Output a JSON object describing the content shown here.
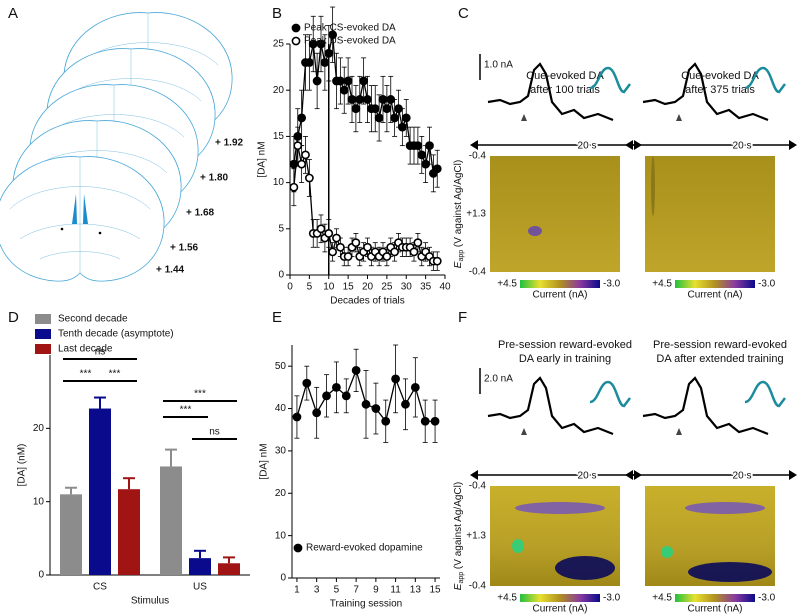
{
  "panel_labels": [
    "A",
    "B",
    "C",
    "D",
    "E",
    "F"
  ],
  "atlas_levels": [
    "+ 1.92",
    "+ 1.80",
    "+ 1.68",
    "+ 1.56",
    "+ 1.44"
  ],
  "chart_data": [
    {
      "type": "line",
      "xlabel": "Decades of trials",
      "ylabel": "[DA] nM",
      "xlim": [
        0,
        40
      ],
      "xticks": [
        0,
        5,
        10,
        15,
        20,
        25,
        30,
        35,
        40
      ],
      "ylim": [
        0,
        25
      ],
      "yticks": [
        0,
        5,
        10,
        15,
        20,
        25
      ],
      "marker_x": 10,
      "legend": "upper left",
      "series": [
        {
          "name": "Peak CS-evoked DA",
          "color": "#000000",
          "marker": "filled",
          "x": [
            1,
            2,
            3,
            4,
            5,
            6,
            7,
            8,
            9,
            10,
            11,
            12,
            13,
            14,
            15,
            16,
            17,
            18,
            19,
            20,
            21,
            22,
            23,
            24,
            25,
            26,
            27,
            28,
            29,
            30,
            31,
            32,
            33,
            34,
            35,
            36,
            37,
            38
          ],
          "values": [
            12,
            15,
            17,
            23,
            23,
            25,
            21,
            25,
            23,
            24,
            26,
            21,
            21,
            20,
            21,
            19,
            18,
            19,
            21,
            19,
            18,
            18,
            17,
            19,
            18,
            19,
            17,
            18,
            16,
            17,
            14,
            14,
            14,
            13,
            12,
            14,
            11,
            11.5
          ],
          "errors": [
            3,
            3,
            3,
            3,
            3,
            3,
            3,
            3,
            3,
            3,
            3,
            3,
            2.5,
            2.5,
            2.5,
            2.5,
            2.5,
            2.5,
            2.5,
            2.5,
            2.5,
            2.5,
            2.5,
            2.5,
            2.5,
            2.5,
            2,
            2,
            2,
            2,
            2,
            2,
            2,
            2,
            2,
            2,
            2,
            2
          ]
        },
        {
          "name": "Peak US-evoked DA",
          "color": "#000000",
          "marker": "open",
          "x": [
            1,
            2,
            3,
            4,
            5,
            6,
            7,
            8,
            9,
            10,
            11,
            12,
            13,
            14,
            15,
            16,
            17,
            18,
            19,
            20,
            21,
            22,
            23,
            24,
            25,
            26,
            27,
            28,
            29,
            30,
            31,
            32,
            33,
            34,
            35,
            36,
            37,
            38
          ],
          "values": [
            9.5,
            14,
            12,
            13,
            10.5,
            4.5,
            4.5,
            5,
            4,
            4.5,
            2.5,
            4,
            3,
            2,
            2,
            3,
            3.5,
            2,
            2.5,
            3,
            2,
            2.5,
            2,
            2.5,
            2,
            3,
            2.5,
            3.5,
            3,
            3,
            3,
            2.5,
            3.5,
            2,
            2.5,
            2,
            1.5,
            1.5
          ],
          "errors": [
            2,
            2,
            2,
            2,
            2,
            1.5,
            1.5,
            1.5,
            1.5,
            1.5,
            1,
            1,
            1,
            1,
            1,
            1,
            1,
            1,
            1,
            1,
            1,
            1,
            1,
            1,
            1,
            1,
            1,
            1,
            1,
            1,
            1,
            1,
            1,
            1,
            1,
            1,
            1,
            1
          ]
        }
      ]
    },
    {
      "type": "bar",
      "xlabel": "Stimulus",
      "ylabel": "[DA] (nM)",
      "categories": [
        "CS",
        "US"
      ],
      "ylim": [
        0,
        30
      ],
      "yticks": [
        0,
        10,
        20
      ],
      "legend": "upper left",
      "series": [
        {
          "name": "Second decade",
          "color": "#8c8c8c",
          "values": [
            11,
            14.8
          ],
          "errors": [
            0.9,
            2.3
          ]
        },
        {
          "name": "Tenth decade (asymptote)",
          "color": "#0a0a8c",
          "values": [
            22.7,
            2.3
          ],
          "errors": [
            1.5,
            1
          ]
        },
        {
          "name": "Last decade",
          "color": "#a01414",
          "values": [
            11.7,
            1.6
          ],
          "errors": [
            1.5,
            0.8
          ]
        }
      ],
      "significance": [
        "ns",
        "***",
        "***",
        "***",
        "***",
        "ns"
      ]
    },
    {
      "type": "line",
      "xlabel": "Training session",
      "ylabel": "[DA] nM",
      "xlim": [
        0.5,
        15.5
      ],
      "xticks": [
        1,
        3,
        5,
        7,
        9,
        11,
        13,
        15
      ],
      "ylim": [
        0,
        55
      ],
      "yticks": [
        0,
        10,
        20,
        30,
        40,
        50
      ],
      "legend": "lower left",
      "series": [
        {
          "name": "Reward-evoked dopamine",
          "color": "#000000",
          "marker": "filled",
          "x": [
            1,
            2,
            3,
            4,
            5,
            6,
            7,
            8,
            9,
            10,
            11,
            12,
            13,
            14,
            15
          ],
          "values": [
            38,
            46,
            39,
            43,
            45,
            43,
            49,
            41,
            40,
            37,
            47,
            41,
            45,
            37,
            37
          ],
          "errors": [
            5,
            4,
            6,
            5,
            6,
            4,
            5,
            8,
            6,
            5,
            8,
            6,
            7,
            5,
            5
          ]
        }
      ]
    }
  ],
  "voltammetry": {
    "time": "20 s",
    "potentials": [
      "-0.4",
      "+1.3",
      "-0.4"
    ],
    "ylabel": "E",
    "ylabel_sub": "app",
    "ylabel_rest": " (V against Ag/AgCl)",
    "colorbar": {
      "max": "+4.5",
      "min": "-3.0",
      "label": "Current (nA)"
    },
    "C": {
      "scale": "1.0 nA",
      "plots": [
        {
          "title": [
            "Cue-evoked DA",
            "after 100 trials"
          ]
        },
        {
          "title": [
            "Cue-evoked DA",
            "after 375 trials"
          ]
        }
      ]
    },
    "F": {
      "scale": "2.0 nA",
      "plots": [
        {
          "title": [
            "Pre-session reward-evoked",
            "DA early in training"
          ]
        },
        {
          "title": [
            "Pre-session reward-evoked",
            "DA after extended training"
          ]
        }
      ]
    }
  }
}
